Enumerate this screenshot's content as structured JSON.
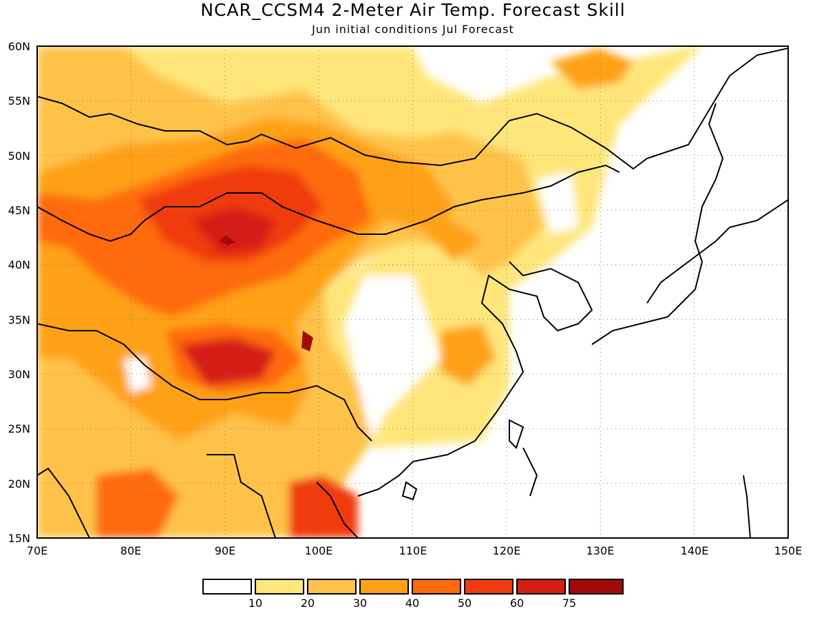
{
  "title": "NCAR_CCSM4 2-Meter Air Temp. Forecast Skill",
  "subtitle": "Jun initial conditions  Jul Forecast",
  "map": {
    "lon_range": [
      70,
      150
    ],
    "lat_range": [
      15,
      60
    ],
    "lon_labels": [
      "70E",
      "80E",
      "90E",
      "100E",
      "110E",
      "120E",
      "130E",
      "140E",
      "150E"
    ],
    "lat_labels": [
      "15N",
      "20N",
      "25N",
      "30N",
      "35N",
      "40N",
      "45N",
      "50N",
      "55N",
      "60N"
    ],
    "grid": true
  },
  "colorbar": {
    "colors": [
      "#ffffff",
      "#ffe67a",
      "#ffc24a",
      "#ffa116",
      "#ff6a0e",
      "#f03a10",
      "#d61e12",
      "#a20a0a"
    ],
    "labels": [
      "10",
      "20",
      "30",
      "40",
      "50",
      "60",
      "75"
    ]
  }
}
